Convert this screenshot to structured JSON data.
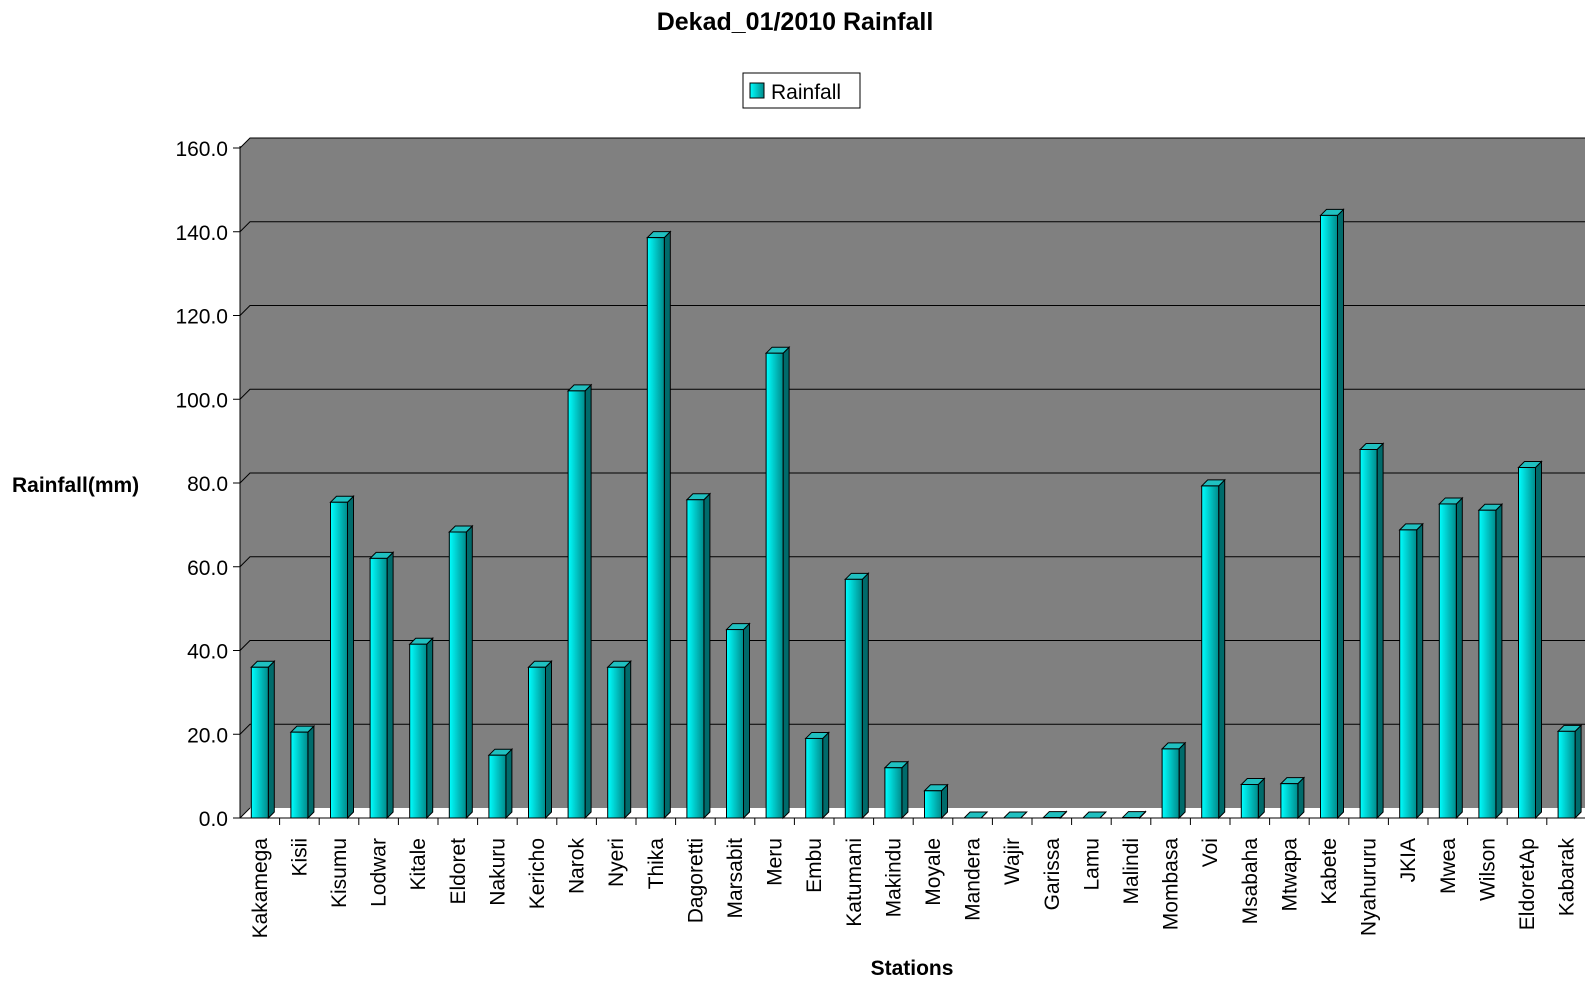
{
  "chart_data": {
    "type": "bar",
    "title": "Dekad_01/2010 Rainfall",
    "xlabel": "Stations",
    "ylabel": "Rainfall(mm)",
    "ylim": [
      0,
      160
    ],
    "yticks": [
      "0.0",
      "20.0",
      "40.0",
      "60.0",
      "80.0",
      "100.0",
      "120.0",
      "140.0",
      "160.0"
    ],
    "grid": true,
    "legend_position": "top-center",
    "categories": [
      "Kakamega",
      "Kisii",
      "Kisumu",
      "Lodwar",
      "Kitale",
      "Eldoret",
      "Nakuru",
      "Kericho",
      "Narok",
      "Nyeri",
      "Thika",
      "Dagoretti",
      "Marsabit",
      "Meru",
      "Embu",
      "Katumani",
      "Makindu",
      "Moyale",
      "Mandera",
      "Wajir",
      "Garissa",
      "Lamu",
      "Malindi",
      "Mombasa",
      "Voi",
      "Msabaha",
      "Mtwapa",
      "Kabete",
      "Nyahururu",
      "JKIA",
      "Mwea",
      "Wilson",
      "EldoretAp",
      "Kabarak"
    ],
    "series": [
      {
        "name": "Rainfall",
        "values": [
          36.0,
          20.5,
          75.4,
          62.0,
          41.5,
          68.3,
          15.0,
          36.0,
          102.0,
          36.0,
          138.6,
          76.0,
          45.0,
          111.0,
          19.0,
          57.0,
          12.0,
          6.5,
          0.0,
          0.0,
          0.1,
          0.0,
          0.1,
          16.5,
          79.3,
          8.0,
          8.2,
          143.9,
          88.0,
          68.8,
          75.0,
          73.5,
          83.7,
          20.7
        ]
      }
    ],
    "colors": {
      "plot_background": "#808080",
      "bar_front_light": "#00ffff",
      "bar_front_dark": "#008b8b",
      "bar_side": "#006b6b",
      "bar_top": "#20c0c0",
      "gridline": "#000000"
    }
  }
}
